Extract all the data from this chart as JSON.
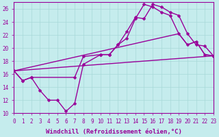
{
  "bg_color": "#c5eced",
  "line_color": "#990099",
  "xlim": [
    0,
    23
  ],
  "ylim": [
    10,
    27
  ],
  "xticks": [
    0,
    1,
    2,
    3,
    4,
    5,
    6,
    7,
    8,
    9,
    10,
    11,
    12,
    13,
    14,
    15,
    16,
    17,
    18,
    19,
    20,
    21,
    22,
    23
  ],
  "yticks": [
    10,
    12,
    14,
    16,
    18,
    20,
    22,
    24,
    26
  ],
  "xlabel": "Windchill (Refroidissement éolien,°C)",
  "series": [
    {
      "x": [
        0,
        1,
        2,
        3,
        4,
        5,
        6,
        7,
        8,
        10,
        11,
        12,
        13,
        14,
        15,
        16,
        17,
        18,
        19,
        20,
        21,
        22,
        23
      ],
      "y": [
        16.5,
        15.0,
        15.5,
        13.5,
        12.0,
        12.0,
        10.3,
        11.5,
        17.5,
        19.0,
        19.0,
        20.5,
        21.5,
        24.5,
        26.7,
        26.3,
        25.5,
        25.0,
        22.2,
        20.5,
        21.0,
        19.0,
        18.8
      ],
      "marker": true,
      "markersize": 2.5,
      "linewidth": 1.0
    },
    {
      "x": [
        0,
        1,
        2,
        7,
        8,
        10,
        11,
        12,
        13,
        14,
        15,
        16,
        17,
        18,
        19,
        20,
        21,
        22,
        23
      ],
      "y": [
        16.5,
        15.0,
        15.5,
        15.5,
        18.7,
        19.0,
        19.0,
        20.5,
        22.5,
        24.7,
        24.5,
        26.7,
        26.3,
        25.5,
        25.0,
        22.2,
        20.5,
        20.3,
        18.8
      ],
      "marker": true,
      "markersize": 2.5,
      "linewidth": 1.0
    },
    {
      "x": [
        0,
        19,
        20,
        21,
        22,
        23
      ],
      "y": [
        16.5,
        22.2,
        20.5,
        21.0,
        19.0,
        18.8
      ],
      "marker": false,
      "markersize": 0,
      "linewidth": 1.0
    },
    {
      "x": [
        0,
        23
      ],
      "y": [
        16.5,
        18.8
      ],
      "marker": false,
      "markersize": 0,
      "linewidth": 1.0
    }
  ],
  "grid_color": "#a8d8d8",
  "xlabel_fontsize": 6.5,
  "tick_fontsize": 5.5
}
